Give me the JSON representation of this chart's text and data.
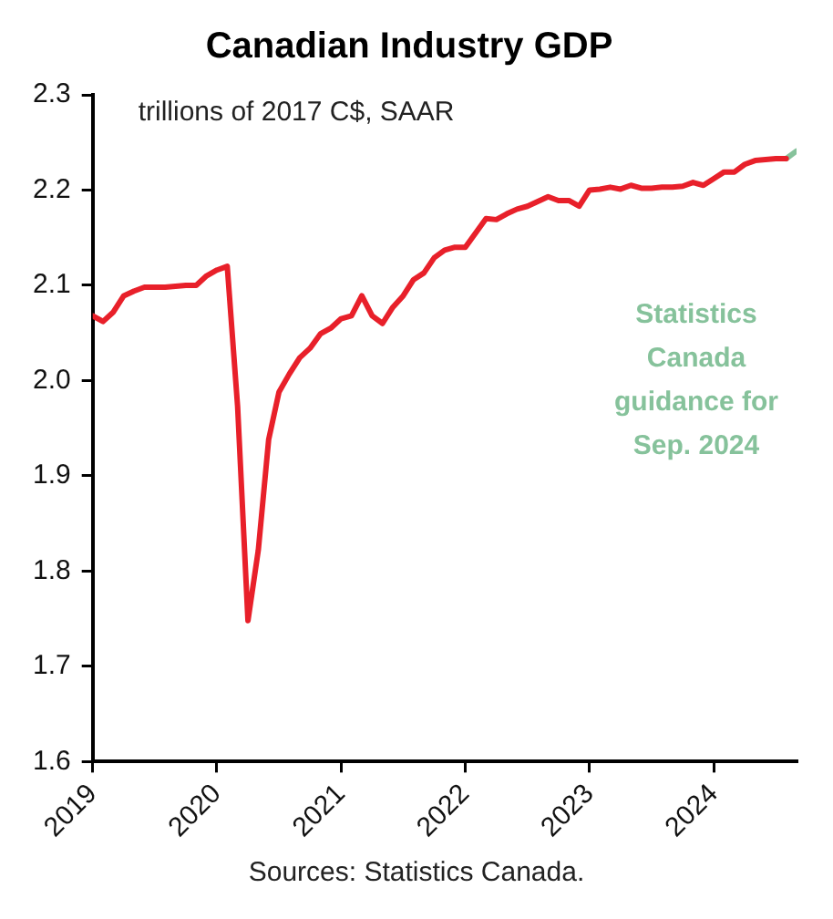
{
  "chart_data": {
    "type": "line",
    "title": "Canadian Industry GDP",
    "annotations": [
      "trillions of 2017 C$, SAAR",
      "Statistics Canada guidance for Sep. 2024",
      "Sources: Statistics Canada."
    ],
    "x": [
      "2019-01",
      "2019-02",
      "2019-03",
      "2019-04",
      "2019-05",
      "2019-06",
      "2019-07",
      "2019-08",
      "2019-09",
      "2019-10",
      "2019-11",
      "2019-12",
      "2020-01",
      "2020-02",
      "2020-03",
      "2020-04",
      "2020-05",
      "2020-06",
      "2020-07",
      "2020-08",
      "2020-09",
      "2020-10",
      "2020-11",
      "2020-12",
      "2021-01",
      "2021-02",
      "2021-03",
      "2021-04",
      "2021-05",
      "2021-06",
      "2021-07",
      "2021-08",
      "2021-09",
      "2021-10",
      "2021-11",
      "2021-12",
      "2022-01",
      "2022-02",
      "2022-03",
      "2022-04",
      "2022-05",
      "2022-06",
      "2022-07",
      "2022-08",
      "2022-09",
      "2022-10",
      "2022-11",
      "2022-12",
      "2023-01",
      "2023-02",
      "2023-03",
      "2023-04",
      "2023-05",
      "2023-06",
      "2023-07",
      "2023-08",
      "2023-09",
      "2023-10",
      "2023-11",
      "2023-12",
      "2024-01",
      "2024-02",
      "2024-03",
      "2024-04",
      "2024-05",
      "2024-06",
      "2024-07",
      "2024-08"
    ],
    "series": [
      {
        "color": "#e8202a",
        "values": [
          2.068,
          2.062,
          2.072,
          2.089,
          2.094,
          2.098,
          2.098,
          2.098,
          2.099,
          2.1,
          2.1,
          2.11,
          2.116,
          2.12,
          1.973,
          1.748,
          1.822,
          1.938,
          1.988,
          2.007,
          2.024,
          2.034,
          2.049,
          2.055,
          2.065,
          2.068,
          2.089,
          2.068,
          2.06,
          2.077,
          2.089,
          2.106,
          2.113,
          2.129,
          2.137,
          2.14,
          2.14,
          2.155,
          2.17,
          2.169,
          2.175,
          2.18,
          2.183,
          2.188,
          2.193,
          2.189,
          2.189,
          2.183,
          2.2,
          2.201,
          2.203,
          2.201,
          2.205,
          2.202,
          2.202,
          2.203,
          2.203,
          2.204,
          2.208,
          2.205,
          2.212,
          2.219,
          2.219,
          2.227,
          2.231,
          2.232,
          2.233,
          2.233
        ]
      },
      {
        "color": "#86c29b",
        "x": [
          "2024-08",
          "2024-09"
        ],
        "values": [
          2.233,
          2.241
        ]
      }
    ],
    "xlim": [
      "2019-01",
      "2024-09"
    ],
    "xticks": [
      "2019",
      "2020",
      "2021",
      "2022",
      "2023",
      "2024"
    ],
    "ylim": [
      1.6,
      2.3
    ],
    "yticks": [
      1.6,
      1.7,
      1.8,
      1.9,
      {
        "value": 2,
        "label": "2.0"
      },
      2.1,
      2.2,
      2.3
    ],
    "grid": false,
    "legend": false,
    "marker": "none",
    "line_style": "solid"
  }
}
